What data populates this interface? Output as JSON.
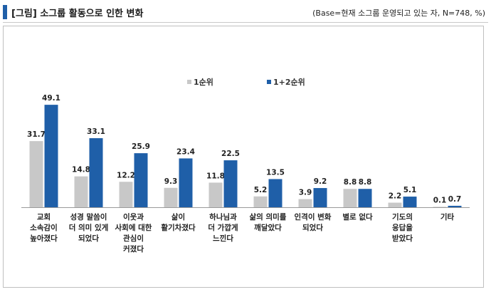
{
  "header": {
    "title": "[그림] 소그룹 활동으로 인한 변화",
    "base_note": "(Base=현재 소그룹 운영되고 있는 자, N=748, %)"
  },
  "colors": {
    "series1": "#c8c8c8",
    "series2": "#1f5fa8",
    "accent": "#1f5fa8"
  },
  "chart_data": {
    "type": "bar",
    "title": "",
    "xlabel": "",
    "ylabel": "",
    "legend_position": "top-center",
    "grid": false,
    "ylim": [
      0,
      55
    ],
    "categories": [
      [
        "교회",
        "소속감이",
        "높아졌다"
      ],
      [
        "성경 말씀이",
        "더 의미 있게",
        "되었다"
      ],
      [
        "이웃과",
        "사회에 대한",
        "관심이",
        "커졌다"
      ],
      [
        "삶이",
        "활기차졌다"
      ],
      [
        "하나님과",
        "더 가깝게",
        "느낀다"
      ],
      [
        "삶의 의미를",
        "깨달았다"
      ],
      [
        "인격이 변화",
        "되었다"
      ],
      [
        "별로 없다"
      ],
      [
        "기도의",
        "응답을",
        "받았다"
      ],
      [
        "기타"
      ]
    ],
    "series": [
      {
        "name": "1순위",
        "values": [
          31.7,
          14.8,
          12.2,
          9.3,
          11.8,
          5.2,
          3.9,
          8.8,
          2.2,
          0.1
        ]
      },
      {
        "name": "1+2순위",
        "values": [
          49.1,
          33.1,
          25.9,
          23.4,
          22.5,
          13.5,
          9.2,
          8.8,
          5.1,
          0.7
        ]
      }
    ]
  }
}
